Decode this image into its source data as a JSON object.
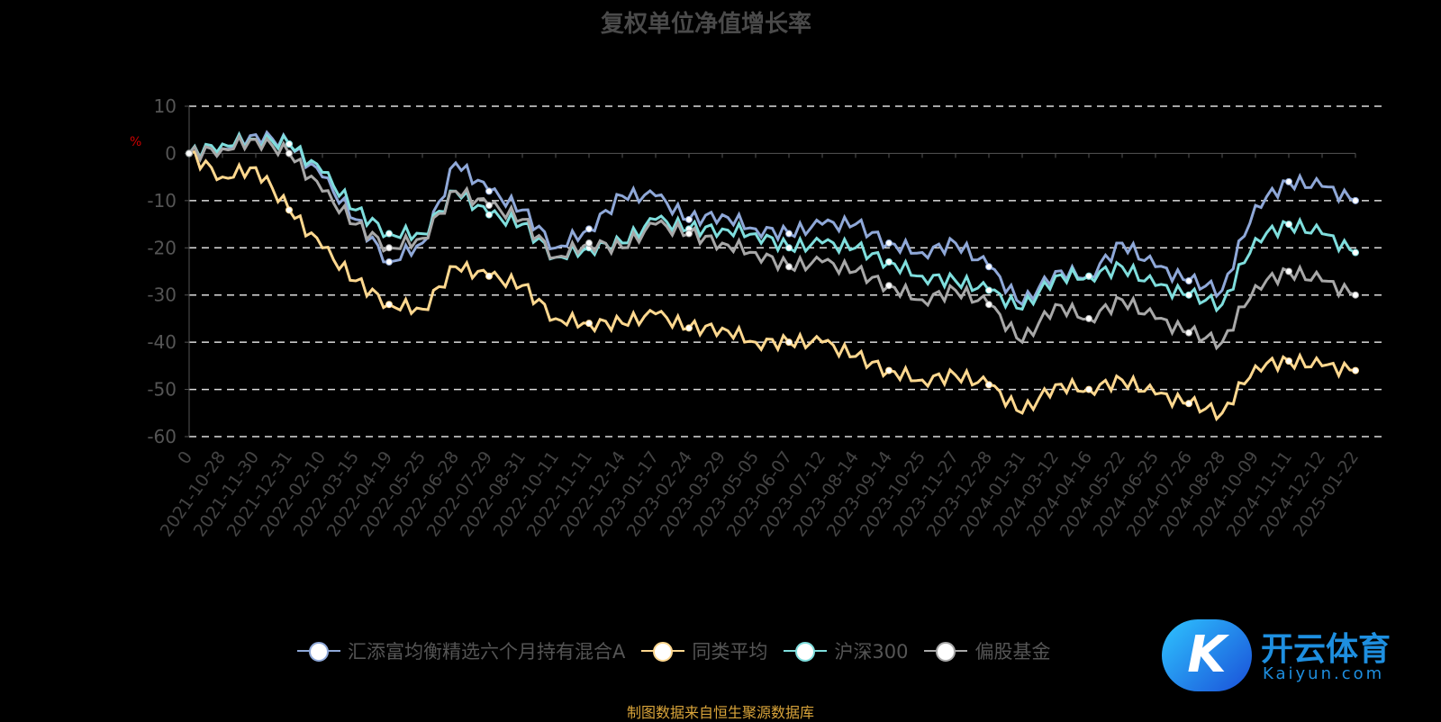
{
  "title": "复权单位净值增长率",
  "unit": "%",
  "source": "制图数据来自恒生聚源数据库",
  "watermark": {
    "cn": "开云体育",
    "en": "Kaiyun.com"
  },
  "chart_data": {
    "type": "line",
    "title": "复权单位净值增长率",
    "ylabel": "%",
    "ylim": [
      -60,
      10
    ],
    "yticks": [
      10,
      0,
      -10,
      -20,
      -30,
      -40,
      -50,
      -60
    ],
    "grid": true,
    "legend_position": "bottom",
    "x": [
      "0",
      "2021-10-28",
      "2021-11-30",
      "2021-12-31",
      "2022-02-10",
      "2022-03-15",
      "2022-04-19",
      "2022-05-25",
      "2022-06-28",
      "2022-07-29",
      "2022-08-31",
      "2022-10-11",
      "2022-11-11",
      "2022-12-14",
      "2023-01-17",
      "2023-02-24",
      "2023-03-29",
      "2023-05-05",
      "2023-06-07",
      "2023-07-12",
      "2023-08-14",
      "2023-09-14",
      "2023-10-25",
      "2023-11-27",
      "2023-12-28",
      "2024-01-31",
      "2024-03-12",
      "2024-04-16",
      "2024-05-22",
      "2024-06-25",
      "2024-07-26",
      "2024-08-28",
      "2024-10-09",
      "2024-11-11",
      "2024-12-12",
      "2025-01-22"
    ],
    "series": [
      {
        "name": "汇添富均衡精选六个月持有混合A",
        "color": "#8fa8d8",
        "values": [
          0,
          1,
          4,
          2,
          -5,
          -14,
          -23,
          -19,
          -2,
          -8,
          -12,
          -20,
          -16,
          -9,
          -9,
          -14,
          -13,
          -16,
          -17,
          -15,
          -15,
          -19,
          -21,
          -19,
          -24,
          -32,
          -25,
          -26,
          -19,
          -24,
          -27,
          -29,
          -11,
          -6,
          -7,
          -10
        ]
      },
      {
        "name": "同类平均",
        "color": "#ffd88f",
        "values": [
          0,
          -5,
          -3,
          -12,
          -20,
          -27,
          -32,
          -33,
          -24,
          -26,
          -28,
          -35,
          -36,
          -36,
          -34,
          -37,
          -37,
          -40,
          -40,
          -40,
          -43,
          -46,
          -48,
          -47,
          -49,
          -55,
          -49,
          -50,
          -48,
          -51,
          -53,
          -55,
          -45,
          -44,
          -45,
          -46
        ]
      },
      {
        "name": "沪深300",
        "color": "#7fdedd",
        "values": [
          0,
          2,
          3,
          2,
          -4,
          -12,
          -17,
          -17,
          -8,
          -13,
          -15,
          -22,
          -20,
          -19,
          -14,
          -16,
          -16,
          -17,
          -20,
          -19,
          -20,
          -23,
          -26,
          -27,
          -29,
          -33,
          -26,
          -26,
          -24,
          -28,
          -30,
          -32,
          -18,
          -15,
          -17,
          -21
        ]
      },
      {
        "name": "偏股基金",
        "color": "#a8a8a8",
        "values": [
          0,
          1,
          3,
          0,
          -8,
          -15,
          -20,
          -18,
          -8,
          -11,
          -14,
          -22,
          -19,
          -20,
          -15,
          -17,
          -19,
          -21,
          -24,
          -23,
          -25,
          -28,
          -31,
          -29,
          -32,
          -40,
          -32,
          -35,
          -31,
          -35,
          -38,
          -40,
          -28,
          -25,
          -27,
          -30
        ]
      }
    ]
  }
}
